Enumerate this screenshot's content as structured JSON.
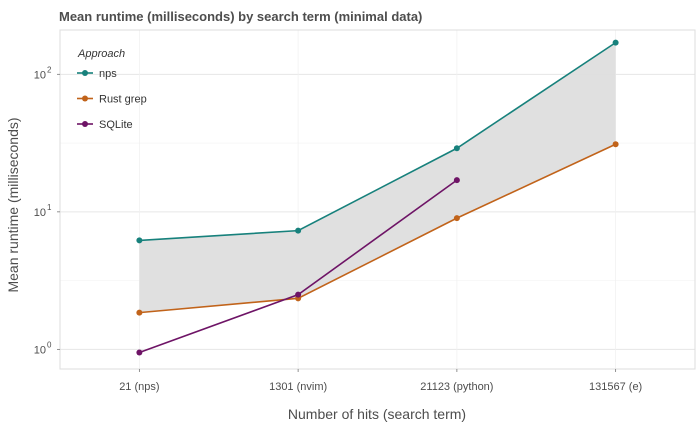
{
  "chart_data": {
    "type": "line",
    "title": "Mean runtime (milliseconds) by search term (minimal data)",
    "xlabel": "Number of hits (search term)",
    "ylabel": "Mean runtime (milliseconds)",
    "y_scale": "log10",
    "ylim": [
      0.72,
      210
    ],
    "grid": true,
    "legend_placement": "top-left",
    "legend_title": "Approach",
    "categories": [
      "21 (nps)",
      "1301 (nvim)",
      "21123 (python)",
      "131567 (e)"
    ],
    "y_ticks": [
      {
        "value": 1,
        "base": "10",
        "exp": "0"
      },
      {
        "value": 10,
        "base": "10",
        "exp": "1"
      },
      {
        "value": 100,
        "base": "10",
        "exp": "2"
      }
    ],
    "ribbon": {
      "between": [
        "Rust grep",
        "nps"
      ],
      "color": "#dedede"
    },
    "series": [
      {
        "name": "nps",
        "color": "#17817c",
        "values": [
          6.2,
          7.3,
          29,
          170
        ]
      },
      {
        "name": "Rust grep",
        "color": "#c1631a",
        "values": [
          1.85,
          2.35,
          9.0,
          31
        ]
      },
      {
        "name": "SQLite",
        "color": "#6e1466",
        "values": [
          0.95,
          2.5,
          17,
          null
        ]
      }
    ]
  }
}
